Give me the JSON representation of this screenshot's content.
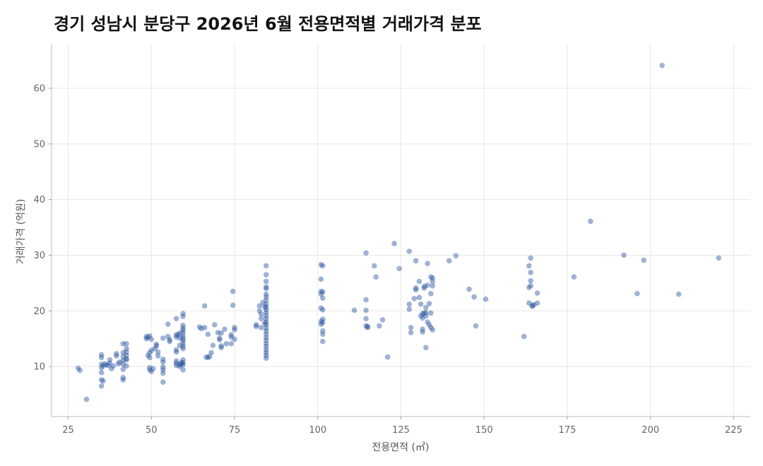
{
  "chart_data": {
    "type": "scatter",
    "title": "경기 성남시 분당구 2026년 6월 전용면적별 거래가격 분포",
    "xlabel": "전용면적 (㎡)",
    "ylabel": "거래가격 (억원)",
    "xlim": [
      20,
      230
    ],
    "ylim": [
      1,
      68
    ],
    "x_ticks": [
      25,
      50,
      75,
      100,
      125,
      150,
      175,
      200,
      225
    ],
    "y_ticks": [
      10,
      20,
      30,
      40,
      50,
      60
    ],
    "grid": true,
    "point_color": "#2b55a0",
    "points": [
      [
        28,
        9.7
      ],
      [
        28.5,
        9.3
      ],
      [
        30.5,
        4.1
      ],
      [
        35,
        12.1
      ],
      [
        35,
        11.6
      ],
      [
        35,
        10.4
      ],
      [
        35,
        9.8
      ],
      [
        35,
        8.9
      ],
      [
        35,
        7.6
      ],
      [
        35,
        6.5
      ],
      [
        35.5,
        10.1
      ],
      [
        35.5,
        7.4
      ],
      [
        36,
        10.5
      ],
      [
        36.5,
        10.3
      ],
      [
        37,
        10.2
      ],
      [
        37.5,
        11.2
      ],
      [
        37.5,
        10.6
      ],
      [
        38,
        9.6
      ],
      [
        38.5,
        10.1
      ],
      [
        39.5,
        12.3
      ],
      [
        39.5,
        11.9
      ],
      [
        40,
        10.5
      ],
      [
        40.5,
        10.8
      ],
      [
        41.5,
        14.1
      ],
      [
        41.5,
        12.5
      ],
      [
        41.5,
        11.8
      ],
      [
        41.5,
        11.1
      ],
      [
        41.5,
        10.4
      ],
      [
        41.5,
        9.5
      ],
      [
        41.5,
        8.0
      ],
      [
        41.5,
        7.6
      ],
      [
        42.5,
        14.1
      ],
      [
        42.5,
        13.2
      ],
      [
        42.5,
        12.6
      ],
      [
        42.5,
        12.0
      ],
      [
        42.5,
        11.4
      ],
      [
        42.5,
        11.2
      ],
      [
        42.5,
        10.1
      ],
      [
        48.5,
        15.4
      ],
      [
        48.5,
        15.0
      ],
      [
        49,
        15.2
      ],
      [
        49.5,
        15.5
      ],
      [
        50,
        14.9
      ],
      [
        49.5,
        12.5
      ],
      [
        49,
        12.0
      ],
      [
        49.5,
        11.6
      ],
      [
        49.5,
        9.8
      ],
      [
        49.5,
        9.4
      ],
      [
        50,
        9.1
      ],
      [
        50,
        12.9
      ],
      [
        50.5,
        9.6
      ],
      [
        51,
        13.2
      ],
      [
        51.5,
        14.0
      ],
      [
        51.5,
        13.7
      ],
      [
        52,
        12.6
      ],
      [
        52,
        11.9
      ],
      [
        53.5,
        15.1
      ],
      [
        53.5,
        11.3
      ],
      [
        53.5,
        10.8
      ],
      [
        53.5,
        9.9
      ],
      [
        53.5,
        9.4
      ],
      [
        53.5,
        8.8
      ],
      [
        53.5,
        7.2
      ],
      [
        55,
        17.6
      ],
      [
        55,
        15.4
      ],
      [
        55.5,
        14.5
      ],
      [
        55.5,
        14.8
      ],
      [
        57.5,
        18.6
      ],
      [
        57.5,
        15.7
      ],
      [
        57.5,
        15.3
      ],
      [
        57.5,
        13.0
      ],
      [
        57.5,
        12.6
      ],
      [
        57.5,
        11.0
      ],
      [
        57.5,
        10.6
      ],
      [
        57.5,
        10.2
      ],
      [
        58,
        15.7
      ],
      [
        58.5,
        15.1
      ],
      [
        58.5,
        16.0
      ],
      [
        58.5,
        13.8
      ],
      [
        58.5,
        10.3
      ],
      [
        58.5,
        10.0
      ],
      [
        59,
        10.7
      ],
      [
        59,
        10.5
      ],
      [
        59.5,
        19.5
      ],
      [
        59.5,
        19.0
      ],
      [
        59.5,
        17.4
      ],
      [
        59.5,
        16.9
      ],
      [
        59.5,
        16.5
      ],
      [
        59.5,
        16.0
      ],
      [
        59.5,
        15.4
      ],
      [
        59.5,
        15.0
      ],
      [
        59.5,
        14.6
      ],
      [
        59.5,
        14.1
      ],
      [
        59.5,
        13.6
      ],
      [
        59.5,
        13.2
      ],
      [
        59.5,
        11.2
      ],
      [
        59.5,
        10.7
      ],
      [
        59.5,
        10.3
      ],
      [
        59.5,
        9.4
      ],
      [
        64.5,
        17.1
      ],
      [
        65,
        16.8
      ],
      [
        66,
        17.0
      ],
      [
        66,
        20.9
      ],
      [
        66.5,
        11.7
      ],
      [
        67,
        11.6
      ],
      [
        67,
        15.8
      ],
      [
        67.5,
        11.8
      ],
      [
        68,
        12.5
      ],
      [
        68.5,
        13.8
      ],
      [
        69,
        17.5
      ],
      [
        70,
        16.1
      ],
      [
        70.5,
        15.1
      ],
      [
        70.5,
        14.8
      ],
      [
        71,
        13.4
      ],
      [
        71,
        13.7
      ],
      [
        71,
        16.0
      ],
      [
        72,
        16.7
      ],
      [
        72.5,
        14.1
      ],
      [
        74,
        15.7
      ],
      [
        74,
        15.3
      ],
      [
        74,
        14.1
      ],
      [
        74.5,
        21.0
      ],
      [
        74.5,
        23.5
      ],
      [
        75,
        17.0
      ],
      [
        75,
        16.6
      ],
      [
        75,
        14.9
      ],
      [
        81.5,
        17.2
      ],
      [
        81.5,
        17.5
      ],
      [
        82.5,
        20.9
      ],
      [
        82.5,
        20.0
      ],
      [
        83,
        17.0
      ],
      [
        83,
        19.4
      ],
      [
        83,
        18.6
      ],
      [
        83.5,
        21.5
      ],
      [
        84,
        20.7
      ],
      [
        84,
        17.8
      ],
      [
        84.5,
        28.1
      ],
      [
        84.5,
        26.5
      ],
      [
        84.5,
        25.3
      ],
      [
        84.5,
        24.3
      ],
      [
        84.5,
        24.0
      ],
      [
        84.5,
        23.0
      ],
      [
        84.5,
        22.5
      ],
      [
        84.5,
        21.9
      ],
      [
        84.5,
        21.2
      ],
      [
        84.5,
        20.7
      ],
      [
        84.5,
        20.2
      ],
      [
        84.5,
        19.7
      ],
      [
        84.5,
        19.1
      ],
      [
        84.5,
        18.6
      ],
      [
        84.5,
        18.0
      ],
      [
        84.5,
        17.5
      ],
      [
        84.5,
        16.9
      ],
      [
        84.5,
        16.4
      ],
      [
        84.5,
        15.8
      ],
      [
        84.5,
        15.2
      ],
      [
        84.5,
        14.7
      ],
      [
        84.5,
        14.1
      ],
      [
        84.5,
        13.6
      ],
      [
        84.5,
        13.0
      ],
      [
        84.5,
        12.5
      ],
      [
        84.5,
        12.0
      ],
      [
        84.5,
        11.5
      ],
      [
        101,
        28.3
      ],
      [
        101.5,
        28.1
      ],
      [
        101,
        25.7
      ],
      [
        101,
        23.5
      ],
      [
        101,
        23.0
      ],
      [
        101.5,
        22.3
      ],
      [
        101.5,
        23.4
      ],
      [
        101,
        20.5
      ],
      [
        101.5,
        20.2
      ],
      [
        101.5,
        18.5
      ],
      [
        101,
        18.1
      ],
      [
        101.5,
        17.9
      ],
      [
        101,
        17.6
      ],
      [
        101.5,
        16.4
      ],
      [
        101.5,
        15.8
      ],
      [
        101.5,
        14.5
      ],
      [
        111,
        20.1
      ],
      [
        114.5,
        30.4
      ],
      [
        114.5,
        22.0
      ],
      [
        114.5,
        20.1
      ],
      [
        114.5,
        18.6
      ],
      [
        114.5,
        17.3
      ],
      [
        115,
        17.0
      ],
      [
        115,
        17.2
      ],
      [
        117,
        28.1
      ],
      [
        117.5,
        26.1
      ],
      [
        118.5,
        17.3
      ],
      [
        119.5,
        18.4
      ],
      [
        121,
        11.7
      ],
      [
        123,
        32.1
      ],
      [
        124.5,
        27.6
      ],
      [
        127.5,
        30.7
      ],
      [
        127.5,
        21.2
      ],
      [
        127.5,
        20.3
      ],
      [
        128,
        16.1
      ],
      [
        128,
        17.0
      ],
      [
        129,
        22.2
      ],
      [
        129.5,
        29.0
      ],
      [
        129.5,
        24.1
      ],
      [
        129.5,
        23.8
      ],
      [
        130.5,
        25.3
      ],
      [
        130.5,
        22.4
      ],
      [
        131,
        21.2
      ],
      [
        131,
        19.1
      ],
      [
        131.5,
        19.5
      ],
      [
        131.5,
        18.7
      ],
      [
        131.5,
        16.7
      ],
      [
        131.5,
        16.2
      ],
      [
        132,
        19.6
      ],
      [
        132,
        24.4
      ],
      [
        132,
        24.1
      ],
      [
        132.5,
        13.4
      ],
      [
        132.5,
        20.6
      ],
      [
        132.5,
        19.7
      ],
      [
        132.5,
        19.1
      ],
      [
        133,
        28.5
      ],
      [
        133,
        24.6
      ],
      [
        133,
        18.0
      ],
      [
        133.5,
        21.3
      ],
      [
        133.5,
        17.5
      ],
      [
        134,
        23.1
      ],
      [
        134,
        19.6
      ],
      [
        134,
        26.1
      ],
      [
        134,
        17.0
      ],
      [
        134.5,
        25.9
      ],
      [
        134.5,
        25.3
      ],
      [
        134.5,
        24.5
      ],
      [
        134.5,
        16.6
      ],
      [
        139.5,
        29.0
      ],
      [
        141.5,
        29.9
      ],
      [
        145.5,
        23.9
      ],
      [
        147,
        22.5
      ],
      [
        147.5,
        17.3
      ],
      [
        150.5,
        22.1
      ],
      [
        162,
        15.4
      ],
      [
        163.5,
        28.1
      ],
      [
        163.5,
        24.2
      ],
      [
        163.5,
        21.4
      ],
      [
        164,
        29.5
      ],
      [
        164,
        26.9
      ],
      [
        164,
        25.4
      ],
      [
        164,
        24.5
      ],
      [
        164.5,
        20.8
      ],
      [
        164.5,
        21.0
      ],
      [
        165,
        21.1
      ],
      [
        166,
        21.4
      ],
      [
        166,
        23.2
      ],
      [
        177,
        26.1
      ],
      [
        182,
        36.1
      ],
      [
        192,
        30.0
      ],
      [
        196,
        23.1
      ],
      [
        198,
        29.1
      ],
      [
        203.5,
        64.1
      ],
      [
        208.5,
        23.0
      ],
      [
        220.5,
        29.5
      ]
    ]
  }
}
